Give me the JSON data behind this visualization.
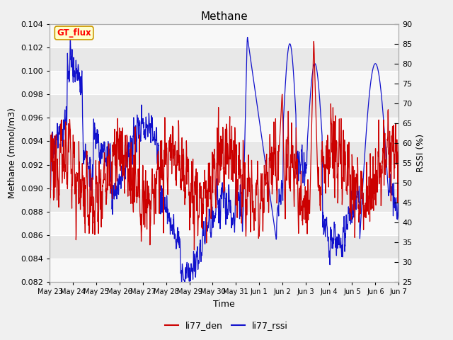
{
  "title": "Methane",
  "ylabel_left": "Methane (mmol/m3)",
  "ylabel_right": "RSSI (%)",
  "xlabel": "Time",
  "ylim_left": [
    0.082,
    0.104
  ],
  "ylim_right": [
    25,
    90
  ],
  "yticks_left": [
    0.082,
    0.084,
    0.086,
    0.088,
    0.09,
    0.092,
    0.094,
    0.096,
    0.098,
    0.1,
    0.102,
    0.104
  ],
  "yticks_right": [
    25,
    30,
    35,
    40,
    45,
    50,
    55,
    60,
    65,
    70,
    75,
    80,
    85,
    90
  ],
  "xtick_labels": [
    "May 23",
    "May 24",
    "May 25",
    "May 26",
    "May 27",
    "May 28",
    "May 29",
    "May 30",
    "May 31",
    "Jun 1",
    "Jun 2",
    "Jun 3",
    "Jun 4",
    "Jun 5",
    "Jun 6",
    "Jun 7"
  ],
  "legend_labels": [
    "li77_den",
    "li77_rssi"
  ],
  "legend_colors": [
    "#cc0000",
    "#1111cc"
  ],
  "gt_flux_label": "GT_flux",
  "gt_flux_bg": "#ffffcc",
  "gt_flux_border": "#cc9900",
  "line_color_red": "#cc0000",
  "line_color_blue": "#1111cc",
  "bg_color": "#f0f0f0",
  "plot_bg_color": "#e0e0e0",
  "grid_color": "#ffffff",
  "title_fontsize": 11,
  "axis_fontsize": 9,
  "tick_fontsize": 8,
  "legend_fontsize": 9
}
